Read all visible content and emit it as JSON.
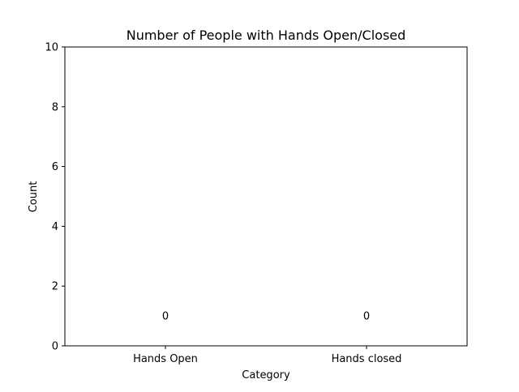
{
  "chart_data": {
    "type": "bar",
    "title": "Number of People with Hands Open/Closed",
    "xlabel": "Category",
    "ylabel": "Count",
    "categories": [
      "Hands Open",
      "Hands closed"
    ],
    "values": [
      0,
      0
    ],
    "data_labels": [
      "0",
      "0"
    ],
    "ylim": [
      0,
      10
    ],
    "yticks": [
      0,
      2,
      4,
      6,
      8,
      10
    ],
    "grid": false,
    "legend": "none",
    "colors": {
      "bar": "#1f77b4",
      "text": "#000000",
      "axes": "#000000",
      "background": "#ffffff"
    }
  }
}
